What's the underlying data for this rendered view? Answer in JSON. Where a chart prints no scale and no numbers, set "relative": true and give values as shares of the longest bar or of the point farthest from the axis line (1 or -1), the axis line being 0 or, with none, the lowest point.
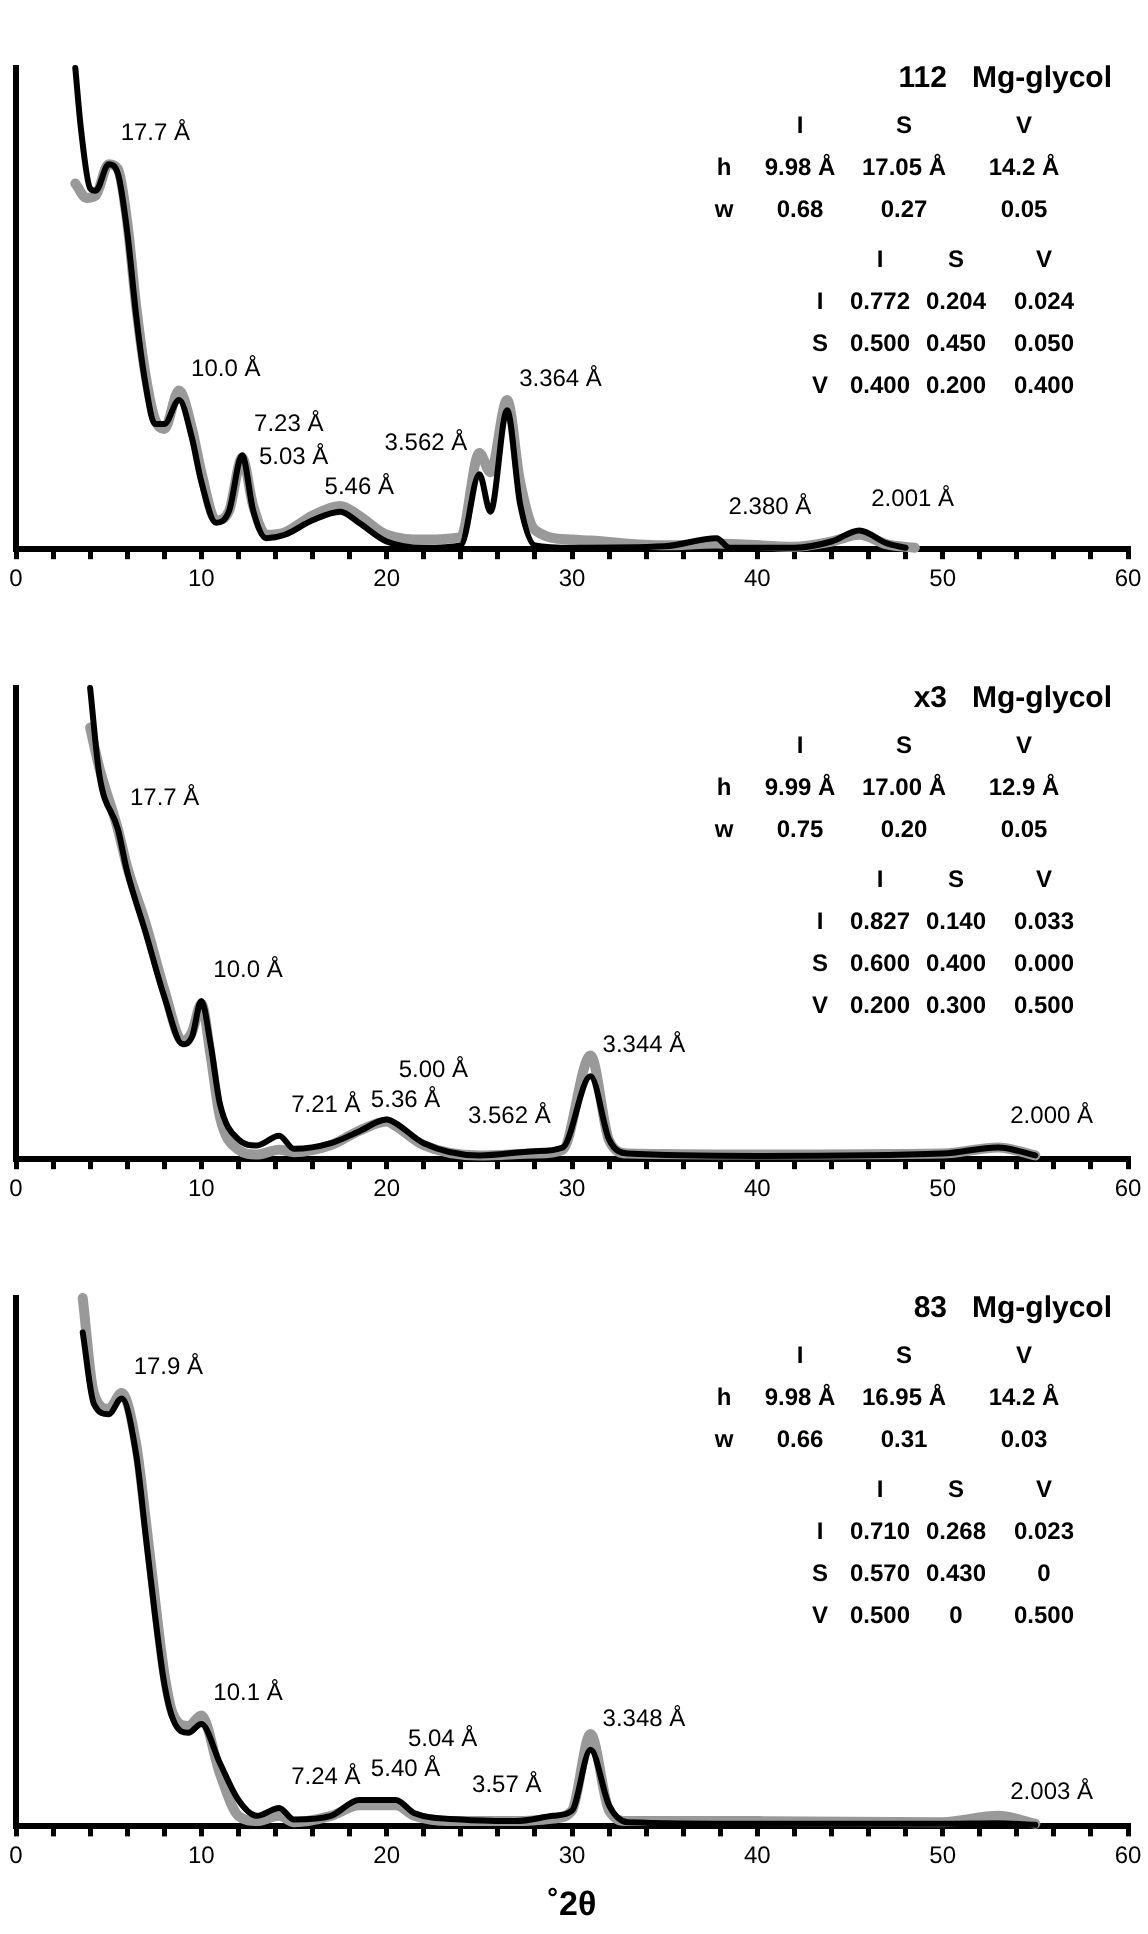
{
  "chart_data": [
    {
      "type": "line",
      "title": "112   Mg-glycol",
      "relative": true,
      "xlim": [
        0,
        60
      ],
      "xticks": [
        0,
        {
          "value": 2,
          "label": null
        },
        {
          "value": 4,
          "label": null
        },
        {
          "value": 6,
          "label": null
        },
        {
          "value": 8,
          "label": null
        },
        10,
        {
          "value": 12,
          "label": null
        },
        {
          "value": 14,
          "label": null
        },
        {
          "value": 16,
          "label": null
        },
        {
          "value": 18,
          "label": null
        },
        20,
        {
          "value": 22,
          "label": null
        },
        {
          "value": 24,
          "label": null
        },
        {
          "value": 26,
          "label": null
        },
        {
          "value": 28,
          "label": null
        },
        30,
        {
          "value": 32,
          "label": null
        },
        {
          "value": 34,
          "label": null
        },
        {
          "value": 36,
          "label": null
        },
        {
          "value": 38,
          "label": null
        },
        40,
        {
          "value": 42,
          "label": null
        },
        {
          "value": 44,
          "label": null
        },
        {
          "value": 46,
          "label": null
        },
        {
          "value": 48,
          "label": null
        },
        50,
        {
          "value": 52,
          "label": null
        },
        {
          "value": 54,
          "label": null
        },
        {
          "value": 56,
          "label": null
        },
        {
          "value": 58,
          "label": null
        },
        60
      ],
      "grid": false,
      "legend": false,
      "marker": "none",
      "line_style": "solid",
      "series": [
        {
          "color": "#999999",
          "x": [
            3.2,
            3.8,
            4.3,
            5.0,
            5.5,
            6,
            6.5,
            7,
            7.5,
            8,
            8.8,
            9.5,
            10,
            10.8,
            11.5,
            12.2,
            12.8,
            13.5,
            14.5,
            16,
            17.5,
            18.5,
            20,
            22,
            24,
            25,
            25.6,
            26.5,
            27.2,
            28,
            30,
            31,
            35,
            37.8,
            42,
            44,
            45.5,
            47,
            48.5
          ],
          "values": [
            0.76,
            0.73,
            0.735,
            0.8,
            0.79,
            0.68,
            0.5,
            0.36,
            0.27,
            0.25,
            0.33,
            0.25,
            0.16,
            0.06,
            0.08,
            0.19,
            0.09,
            0.03,
            0.035,
            0.07,
            0.09,
            0.07,
            0.03,
            0.02,
            0.025,
            0.2,
            0.16,
            0.31,
            0.14,
            0.04,
            0.02,
            0.018,
            0.008,
            0.012,
            0.005,
            0.016,
            0.03,
            0.01,
            0.003
          ]
        },
        {
          "color": "#000000",
          "x": [
            3.2,
            3.5,
            4.0,
            4.3,
            5.0,
            5.5,
            6,
            6.5,
            7,
            7.5,
            8,
            8.8,
            9.5,
            10,
            10.8,
            11.5,
            12.2,
            12.8,
            13.5,
            14.5,
            16,
            17.5,
            18.5,
            20,
            22,
            24,
            25,
            25.6,
            26.5,
            27.2,
            28,
            30,
            35,
            37.8,
            38.5,
            42,
            44,
            45.5,
            47,
            48
          ],
          "values": [
            1.0,
            0.875,
            0.75,
            0.745,
            0.8,
            0.78,
            0.66,
            0.48,
            0.34,
            0.26,
            0.26,
            0.31,
            0.23,
            0.14,
            0.055,
            0.08,
            0.195,
            0.08,
            0.023,
            0.03,
            0.06,
            0.078,
            0.055,
            0.016,
            0.003,
            0.008,
            0.156,
            0.078,
            0.289,
            0.094,
            0.008,
            0.003,
            0.006,
            0.023,
            0.003,
            0.003,
            0.016,
            0.039,
            0.012,
            0.003
          ]
        }
      ],
      "annotations": [
        "I  S  V",
        "h  9.98 Å  17.05 Å  14.2 Å",
        "w  0.68  0.27  0.05",
        "I  S  V",
        "I  0.772  0.204  0.024",
        "S  0.500  0.450  0.050",
        "V  0.400  0.200  0.400",
        {
          "text": "17.7 Å",
          "x": 5.0,
          "y": 0.8
        },
        {
          "text": "10.0 Å",
          "x": 8.8,
          "y": 0.31
        },
        {
          "text": "7.23 Å",
          "x": 12.2,
          "y": 0.195
        },
        {
          "text": "5.46 Å",
          "x": 16,
          "y": 0.06
        },
        {
          "text": "3.562 Å",
          "x": 25,
          "y": 0.156
        },
        {
          "text": "5.03 Å",
          "x": 17.5,
          "y": 0.078
        },
        {
          "text": "3.364 Å",
          "x": 26.5,
          "y": 0.289
        },
        {
          "text": "2.380 Å",
          "x": 37.8,
          "y": 0.023
        },
        {
          "text": "2.001 Å",
          "x": 45.5,
          "y": 0.039
        }
      ]
    },
    {
      "type": "line",
      "title": "x3   Mg-glycol",
      "relative": true,
      "xlim": [
        0,
        60
      ],
      "xticks": [
        0,
        {
          "value": 2,
          "label": null
        },
        {
          "value": 4,
          "label": null
        },
        {
          "value": 6,
          "label": null
        },
        {
          "value": 8,
          "label": null
        },
        10,
        {
          "value": 12,
          "label": null
        },
        {
          "value": 14,
          "label": null
        },
        {
          "value": 16,
          "label": null
        },
        {
          "value": 18,
          "label": null
        },
        20,
        {
          "value": 22,
          "label": null
        },
        {
          "value": 24,
          "label": null
        },
        {
          "value": 26,
          "label": null
        },
        {
          "value": 28,
          "label": null
        },
        30,
        {
          "value": 32,
          "label": null
        },
        {
          "value": 34,
          "label": null
        },
        {
          "value": 36,
          "label": null
        },
        {
          "value": 38,
          "label": null
        },
        40,
        {
          "value": 42,
          "label": null
        },
        {
          "value": 44,
          "label": null
        },
        {
          "value": 46,
          "label": null
        },
        {
          "value": 48,
          "label": null
        },
        50,
        {
          "value": 52,
          "label": null
        },
        {
          "value": 54,
          "label": null
        },
        {
          "value": 56,
          "label": null
        },
        {
          "value": 58,
          "label": null
        },
        60
      ],
      "grid": false,
      "legend": false,
      "marker": "none",
      "line_style": "solid",
      "series": [
        {
          "color": "#999999",
          "x": [
            4.0,
            4.5,
            5.5,
            6,
            7,
            8,
            9,
            9.5,
            10,
            10.5,
            11,
            12,
            13,
            14.2,
            15,
            17,
            18.5,
            20,
            20.5,
            22,
            25,
            28,
            29.5,
            31,
            32,
            33,
            40,
            50,
            53,
            55
          ],
          "values": [
            0.916,
            0.83,
            0.7,
            0.62,
            0.5,
            0.36,
            0.25,
            0.27,
            0.33,
            0.22,
            0.09,
            0.02,
            0.01,
            0.02,
            0.015,
            0.03,
            0.06,
            0.08,
            0.07,
            0.03,
            0.008,
            0.012,
            0.02,
            0.22,
            0.04,
            0.012,
            0.01,
            0.012,
            0.025,
            0.008
          ]
        },
        {
          "color": "#000000",
          "x": [
            4.0,
            4.5,
            5.5,
            6,
            7,
            8,
            9,
            9.5,
            10,
            10.5,
            11,
            12,
            13,
            14.2,
            15,
            17,
            18.5,
            20,
            20.5,
            22,
            25,
            28,
            29.5,
            31,
            32,
            33,
            40,
            50,
            53,
            55
          ],
          "values": [
            1.0,
            0.815,
            0.7,
            0.61,
            0.48,
            0.345,
            0.244,
            0.26,
            0.336,
            0.244,
            0.118,
            0.042,
            0.029,
            0.05,
            0.022,
            0.034,
            0.059,
            0.084,
            0.076,
            0.034,
            0.008,
            0.017,
            0.025,
            0.176,
            0.042,
            0.012,
            0.007,
            0.012,
            0.025,
            0.008
          ]
        }
      ],
      "annotations": [
        "I  S  V",
        "h  9.99 Å  17.00 Å  12.9 Å",
        "w  0.75  0.20  0.05",
        "I  S  V",
        "I  0.827  0.140  0.033",
        "S  0.600  0.400  0.000",
        "V  0.200  0.300  0.500",
        {
          "text": "17.7 Å",
          "x": 5.5,
          "y": 0.7
        },
        {
          "text": "10.0 Å",
          "x": 10,
          "y": 0.336
        },
        {
          "text": "5.36 Å",
          "x": 18.5,
          "y": 0.059
        },
        {
          "text": "3.344 Å",
          "x": 31,
          "y": 0.176
        },
        {
          "text": "7.21 Å",
          "x": 14.2,
          "y": 0.05
        },
        {
          "text": "5.00 Å",
          "x": 20,
          "y": 0.084
        },
        {
          "text": "3.562 Å",
          "x": 29.5,
          "y": 0.025
        },
        {
          "text": "2.000 Å",
          "x": 53,
          "y": 0.025
        }
      ]
    },
    {
      "type": "line",
      "title": "83   Mg-glycol",
      "xlabel": "˚2θ",
      "relative": true,
      "xlim": [
        0,
        60
      ],
      "xticks": [
        0,
        {
          "value": 2,
          "label": null
        },
        {
          "value": 4,
          "label": null
        },
        {
          "value": 6,
          "label": null
        },
        {
          "value": 8,
          "label": null
        },
        10,
        {
          "value": 12,
          "label": null
        },
        {
          "value": 14,
          "label": null
        },
        {
          "value": 16,
          "label": null
        },
        {
          "value": 18,
          "label": null
        },
        20,
        {
          "value": 22,
          "label": null
        },
        {
          "value": 24,
          "label": null
        },
        {
          "value": 26,
          "label": null
        },
        {
          "value": 28,
          "label": null
        },
        30,
        {
          "value": 32,
          "label": null
        },
        {
          "value": 34,
          "label": null
        },
        {
          "value": 36,
          "label": null
        },
        {
          "value": 38,
          "label": null
        },
        40,
        {
          "value": 42,
          "label": null
        },
        {
          "value": 44,
          "label": null
        },
        {
          "value": 46,
          "label": null
        },
        {
          "value": 48,
          "label": null
        },
        50,
        {
          "value": 52,
          "label": null
        },
        {
          "value": 54,
          "label": null
        },
        {
          "value": 56,
          "label": null
        },
        {
          "value": 58,
          "label": null
        },
        60
      ],
      "grid": false,
      "legend": false,
      "marker": "none",
      "line_style": "solid",
      "series": [
        {
          "color": "#999999",
          "x": [
            3.6,
            4.2,
            5.0,
            5.7,
            6.5,
            7,
            7.5,
            8,
            8.5,
            9.3,
            10,
            11,
            12,
            13,
            14.2,
            15,
            17,
            18.5,
            20.5,
            21.5,
            24,
            27,
            29,
            30,
            31,
            32,
            33,
            40,
            50,
            53,
            55
          ],
          "values": [
            1.0,
            0.82,
            0.79,
            0.82,
            0.72,
            0.58,
            0.43,
            0.29,
            0.21,
            0.19,
            0.21,
            0.1,
            0.02,
            0.01,
            0.02,
            0.008,
            0.02,
            0.04,
            0.04,
            0.02,
            0.01,
            0.01,
            0.015,
            0.03,
            0.175,
            0.03,
            0.01,
            0.01,
            0.008,
            0.02,
            0.005
          ]
        },
        {
          "color": "#000000",
          "x": [
            3.6,
            4.2,
            5.0,
            5.7,
            6.5,
            7,
            7.5,
            8,
            8.5,
            9.3,
            10,
            11,
            12,
            13,
            14.2,
            15,
            17,
            18.5,
            20.5,
            21.5,
            24,
            27,
            29,
            30,
            31,
            32,
            33,
            40,
            50,
            53,
            55
          ],
          "values": [
            0.935,
            0.8,
            0.78,
            0.81,
            0.7,
            0.55,
            0.4,
            0.27,
            0.2,
            0.177,
            0.194,
            0.12,
            0.05,
            0.02,
            0.035,
            0.013,
            0.02,
            0.05,
            0.05,
            0.025,
            0.013,
            0.01,
            0.02,
            0.03,
            0.145,
            0.04,
            0.008,
            0.005,
            0.005,
            0.006,
            0.003
          ]
        }
      ],
      "annotations": [
        "I  S  V",
        "h  9.98 Å  16.95 Å  14.2 Å",
        "w  0.66  0.31  0.03",
        "I  S  V",
        "I  0.710  0.268  0.023",
        "S  0.570  0.430  0",
        "V  0.500  0  0.500",
        {
          "text": "17.9 Å",
          "x": 5.7,
          "y": 0.81
        },
        {
          "text": "10.1 Å",
          "x": 10,
          "y": 0.194
        },
        {
          "text": "3.348 Å",
          "x": 31,
          "y": 0.145
        },
        {
          "text": "5.40 Å",
          "x": 18.5,
          "y": 0.05
        },
        {
          "text": "7.24 Å",
          "x": 14.2,
          "y": 0.035
        },
        {
          "text": "5.04 Å",
          "x": 20.5,
          "y": 0.05
        },
        {
          "text": "3.57 Å",
          "x": 29,
          "y": 0.02
        },
        {
          "text": "2.003 Å",
          "x": 53,
          "y": 0.006
        }
      ]
    }
  ]
}
